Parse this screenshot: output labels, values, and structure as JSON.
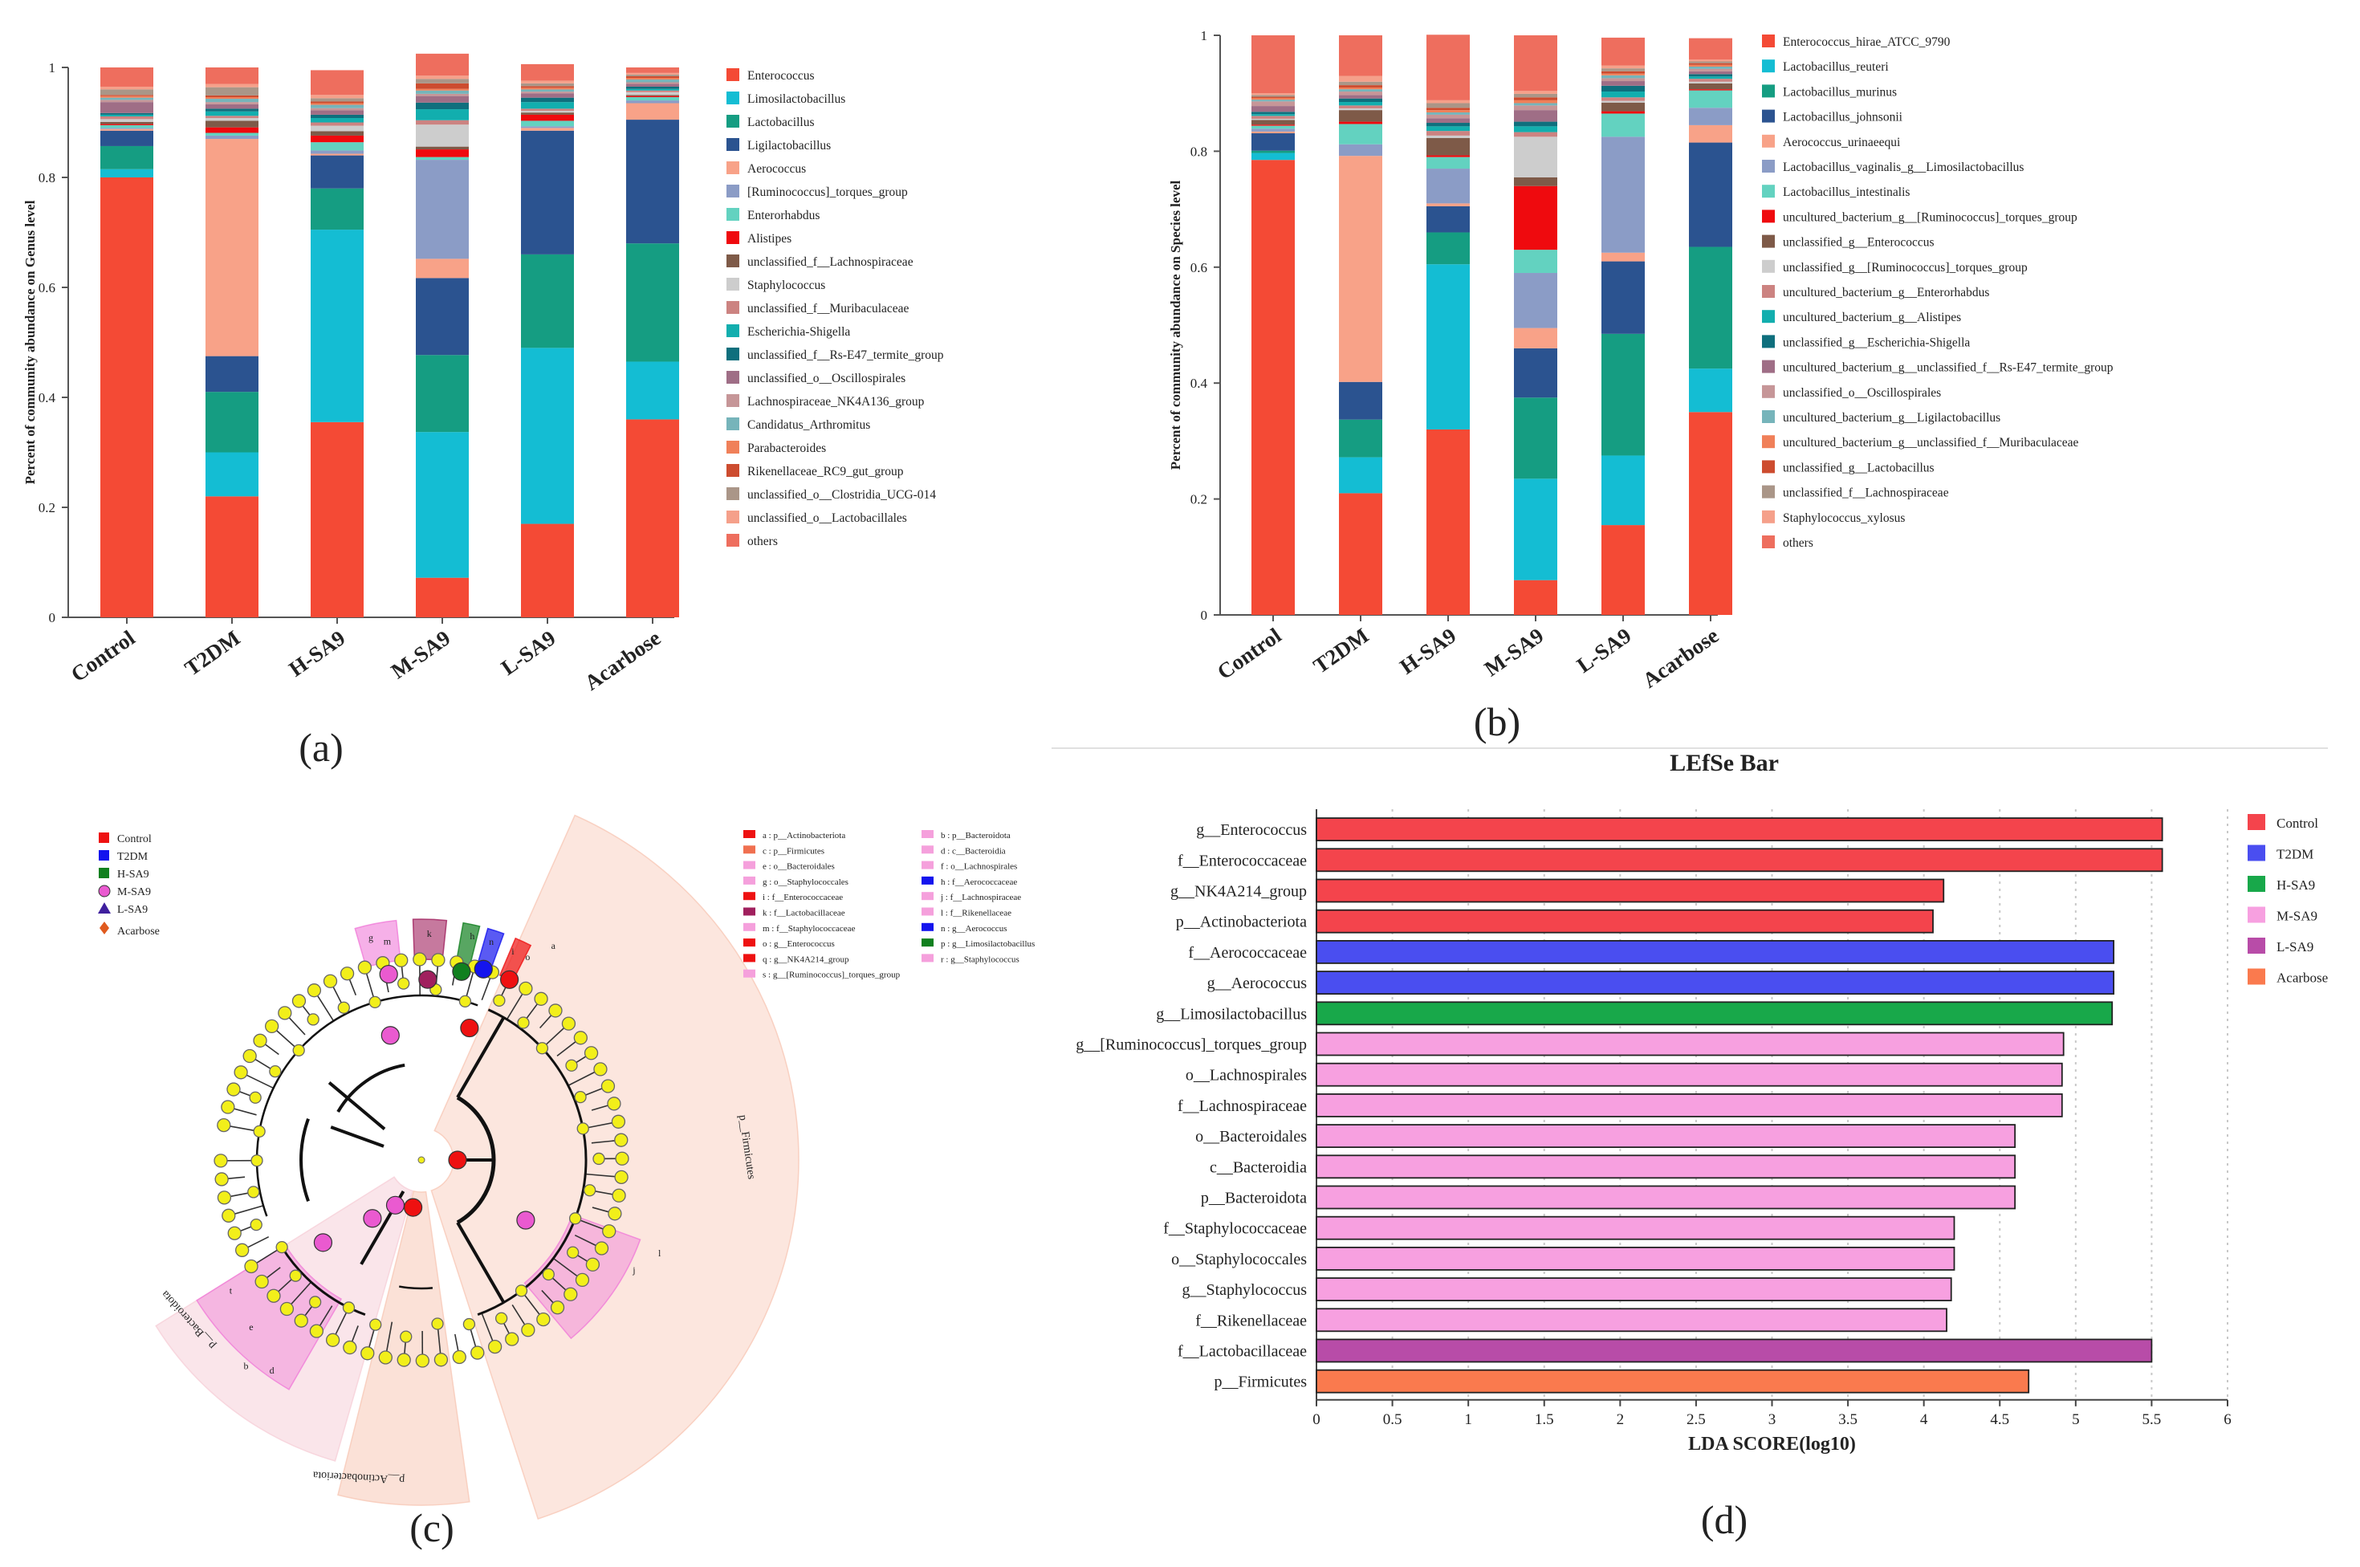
{
  "panel_labels": [
    "(a)",
    "(b)",
    "(c)",
    "(d)"
  ],
  "colors": {
    "Enterococcus": "#f44a35",
    "Limosilactobacillus": "#14bdd3",
    "Lactobacillus": "#159d82",
    "Ligilactobacillus": "#2b5390",
    "Aerococcus": "#f8a288",
    "Ruminococcus_torques": "#8b9cc6",
    "Enterorhabdus": "#63d2c0",
    "Alistipes": "#ef0a0e",
    "unc_Lachno": "#7e5a48",
    "Staphylococcus": "#cdcdcd",
    "unc_Murib": "#cc8381",
    "Escherichia": "#12aeae",
    "RsE47": "#0f6f7d",
    "Oscillo": "#9f6e86",
    "NK4A136": "#c69698",
    "Candidatus": "#76b4ba",
    "Parabacteroides": "#f08059",
    "Rikenellaceae": "#cd4c2f",
    "Clostridia": "#aa9688",
    "Lactobacillales": "#f5a08a",
    "others": "#ee6e5e"
  },
  "chart_data": [
    {
      "type": "bar",
      "stacked": true,
      "panel": "(a)",
      "title": "",
      "xlabel": "",
      "ylabel": "Percent of community abundance on Genus level",
      "ylim": [
        0,
        1
      ],
      "yticks": [
        "0",
        "0.2",
        "0.4",
        "0.6",
        "0.8",
        "1"
      ],
      "categories": [
        "Control",
        "T2DM",
        "H-SA9",
        "M-SA9",
        "L-SA9",
        "Acarbose"
      ],
      "series": [
        {
          "name": "Enterococcus",
          "key": "Enterococcus",
          "values": [
            0.8,
            0.22,
            0.355,
            0.072,
            0.17,
            0.36
          ]
        },
        {
          "name": "Limosilactobacillus",
          "key": "Limosilactobacillus",
          "values": [
            0.015,
            0.08,
            0.35,
            0.265,
            0.32,
            0.105
          ]
        },
        {
          "name": "Lactobacillus",
          "key": "Lactobacillus",
          "values": [
            0.042,
            0.11,
            0.075,
            0.14,
            0.17,
            0.215
          ]
        },
        {
          "name": "Ligilactobacillus",
          "key": "Ligilactobacillus",
          "values": [
            0.028,
            0.065,
            0.06,
            0.14,
            0.225,
            0.225
          ]
        },
        {
          "name": "Aerococcus",
          "key": "Aerococcus",
          "values": [
            0.003,
            0.395,
            0.003,
            0.035,
            0.005,
            0.03
          ]
        },
        {
          "name": "[Ruminococcus]_torques_group",
          "key": "Ruminococcus_torques",
          "values": [
            0.002,
            0.006,
            0.006,
            0.18,
            0.003,
            0.005
          ]
        },
        {
          "name": "Enterorhabdus",
          "key": "Enterorhabdus",
          "values": [
            0.005,
            0.005,
            0.015,
            0.005,
            0.01,
            0.006
          ]
        },
        {
          "name": "Alistipes",
          "key": "Alistipes",
          "values": [
            0.002,
            0.01,
            0.012,
            0.014,
            0.011,
            0.002
          ]
        },
        {
          "name": "unclassified_f__Lachnospiraceae",
          "key": "unc_Lachno",
          "values": [
            0.004,
            0.012,
            0.008,
            0.005,
            0.004,
            0.002
          ]
        },
        {
          "name": "Staphylococcus",
          "key": "Staphylococcus",
          "values": [
            0.005,
            0.005,
            0.01,
            0.04,
            0.003,
            0.005
          ]
        },
        {
          "name": "unclassified_f__Muribaculaceae",
          "key": "unc_Murib",
          "values": [
            0.005,
            0.004,
            0.006,
            0.008,
            0.004,
            0.003
          ]
        },
        {
          "name": "Escherichia-Shigella",
          "key": "Escherichia",
          "values": [
            0.003,
            0.008,
            0.008,
            0.02,
            0.012,
            0.003
          ]
        },
        {
          "name": "unclassified_f__Rs-E47_termite_group",
          "key": "RsE47",
          "values": [
            0.003,
            0.005,
            0.006,
            0.012,
            0.008,
            0.004
          ]
        },
        {
          "name": "unclassified_o__Oscillospirales",
          "key": "Oscillo",
          "values": [
            0.02,
            0.008,
            0.008,
            0.012,
            0.008,
            0.005
          ]
        },
        {
          "name": "Lachnospiraceae_NK4A136_group",
          "key": "NK4A136",
          "values": [
            0.004,
            0.004,
            0.004,
            0.004,
            0.003,
            0.003
          ]
        },
        {
          "name": "Candidatus_Arthromitus",
          "key": "Candidatus",
          "values": [
            0.004,
            0.006,
            0.006,
            0.006,
            0.004,
            0.005
          ]
        },
        {
          "name": "Parabacteroides",
          "key": "Parabacteroides",
          "values": [
            0.003,
            0.003,
            0.003,
            0.003,
            0.003,
            0.003
          ]
        },
        {
          "name": "Rikenellaceae_RC9_gut_group",
          "key": "Rikenellaceae",
          "values": [
            0.002,
            0.003,
            0.003,
            0.01,
            0.003,
            0.003
          ]
        },
        {
          "name": "unclassified_o__Clostridia_UCG-014",
          "key": "Clostridia",
          "values": [
            0.01,
            0.015,
            0.006,
            0.008,
            0.005,
            0.003
          ]
        },
        {
          "name": "unclassified_o__Lactobacillales",
          "key": "Lactobacillales",
          "values": [
            0.005,
            0.006,
            0.006,
            0.006,
            0.005,
            0.003
          ]
        },
        {
          "name": "others",
          "key": "others",
          "values": [
            0.035,
            0.03,
            0.045,
            0.04,
            0.03,
            0.01
          ]
        }
      ]
    },
    {
      "type": "bar",
      "stacked": true,
      "panel": "(b)",
      "title": "",
      "xlabel": "",
      "ylabel": "Percent of community abundance on Species level",
      "ylim": [
        0,
        1
      ],
      "yticks": [
        "0",
        "0.2",
        "0.4",
        "0.6",
        "0.8",
        "1"
      ],
      "categories": [
        "Control",
        "T2DM",
        "H-SA9",
        "M-SA9",
        "L-SA9",
        "Acarbose"
      ],
      "series": [
        {
          "name": "Enterococcus_hirae_ATCC_9790",
          "key": "Enterococcus",
          "values": [
            0.785,
            0.21,
            0.32,
            0.06,
            0.155,
            0.35
          ]
        },
        {
          "name": "Lactobacillus_reuteri",
          "key": "Limosilactobacillus",
          "values": [
            0.012,
            0.062,
            0.285,
            0.175,
            0.12,
            0.075
          ]
        },
        {
          "name": "Lactobacillus_murinus",
          "key": "Lactobacillus",
          "values": [
            0.004,
            0.065,
            0.055,
            0.14,
            0.21,
            0.21
          ]
        },
        {
          "name": "Lactobacillus_johnsonii",
          "key": "Ligilactobacillus",
          "values": [
            0.03,
            0.065,
            0.045,
            0.085,
            0.125,
            0.18
          ]
        },
        {
          "name": "Aerococcus_urinaeequi",
          "key": "Aerococcus",
          "values": [
            0.003,
            0.39,
            0.005,
            0.035,
            0.015,
            0.03
          ]
        },
        {
          "name": "Lactobacillus_vaginalis_g__Limosilactobacillus",
          "key": "Ruminococcus_torques",
          "values": [
            0.005,
            0.02,
            0.06,
            0.095,
            0.2,
            0.03
          ]
        },
        {
          "name": "Lactobacillus_intestinalis",
          "key": "Enterorhabdus",
          "values": [
            0.005,
            0.035,
            0.02,
            0.04,
            0.04,
            0.03
          ]
        },
        {
          "name": "uncultured_bacterium_g__[Ruminococcus]_torques_group",
          "key": "Alistipes",
          "values": [
            0.002,
            0.004,
            0.003,
            0.11,
            0.004,
            0.002
          ]
        },
        {
          "name": "unclassified_g__Enterococcus",
          "key": "unc_Lachno",
          "values": [
            0.008,
            0.02,
            0.03,
            0.015,
            0.015,
            0.01
          ]
        },
        {
          "name": "unclassified_g__[Ruminococcus]_torques_group",
          "key": "Staphylococcus",
          "values": [
            0.002,
            0.003,
            0.004,
            0.07,
            0.003,
            0.003
          ]
        },
        {
          "name": "uncultured_bacterium_g__Enterorhabdus",
          "key": "unc_Murib",
          "values": [
            0.005,
            0.005,
            0.008,
            0.008,
            0.006,
            0.005
          ]
        },
        {
          "name": "uncultured_bacterium_g__Alistipes",
          "key": "Escherichia",
          "values": [
            0.003,
            0.006,
            0.008,
            0.01,
            0.01,
            0.004
          ]
        },
        {
          "name": "unclassified_g__Escherichia-Shigella",
          "key": "RsE47",
          "values": [
            0.004,
            0.006,
            0.006,
            0.008,
            0.01,
            0.004
          ]
        },
        {
          "name": "uncultured_bacterium_g__unclassified_f__Rs-E47_termite_group",
          "key": "Oscillo",
          "values": [
            0.01,
            0.006,
            0.008,
            0.02,
            0.008,
            0.005
          ]
        },
        {
          "name": "unclassified_o__Oscillospirales",
          "key": "NK4A136",
          "values": [
            0.008,
            0.006,
            0.006,
            0.008,
            0.005,
            0.004
          ]
        },
        {
          "name": "uncultured_bacterium_g__Ligilactobacillus",
          "key": "Candidatus",
          "values": [
            0.003,
            0.004,
            0.004,
            0.004,
            0.005,
            0.004
          ]
        },
        {
          "name": "uncultured_bacterium_g__unclassified_f__Muribaculaceae",
          "key": "Parabacteroides",
          "values": [
            0.003,
            0.003,
            0.004,
            0.005,
            0.003,
            0.003
          ]
        },
        {
          "name": "unclassified_g__Lactobacillus",
          "key": "Rikenellaceae",
          "values": [
            0.002,
            0.004,
            0.004,
            0.005,
            0.004,
            0.003
          ]
        },
        {
          "name": "unclassified_f__Lachnospiraceae",
          "key": "Clostridia",
          "values": [
            0.003,
            0.006,
            0.008,
            0.006,
            0.005,
            0.003
          ]
        },
        {
          "name": "Staphylococcus_xylosus",
          "key": "Lactobacillales",
          "values": [
            0.003,
            0.01,
            0.005,
            0.005,
            0.005,
            0.003
          ]
        },
        {
          "name": "others",
          "key": "others",
          "values": [
            0.1,
            0.07,
            0.113,
            0.096,
            0.048,
            0.037
          ]
        }
      ]
    },
    {
      "type": "other",
      "panel": "(c)",
      "subtype": "cladogram",
      "legend": [
        "Control",
        "T2DM",
        "H-SA9",
        "M-SA9",
        "L-SA9",
        "Acarbose"
      ],
      "legend_colors": [
        "#ee1111",
        "#1414ee",
        "#11801f",
        "#ea5ad0",
        "#3f1f9e",
        "#e05a1e"
      ],
      "clade_labels": [
        {
          "text": "a : p__Actinobacteriota",
          "color": "#ee1111"
        },
        {
          "text": "c : p__Firmicutes",
          "color": "#f07050"
        },
        {
          "text": "e : o__Bacteroidales",
          "color": "#f5a0dc"
        },
        {
          "text": "g : o__Staphylococcales",
          "color": "#f5a0dc"
        },
        {
          "text": "i : f__Enterococcaceae",
          "color": "#ee1111"
        },
        {
          "text": "k : f__Lactobacillaceae",
          "color": "#a0205e"
        },
        {
          "text": "m : f__Staphylococcaceae",
          "color": "#f5a0dc"
        },
        {
          "text": "o : g__Enterococcus",
          "color": "#ee1111"
        },
        {
          "text": "q : g__NK4A214_group",
          "color": "#ee1111"
        },
        {
          "text": "s : g__[Ruminococcus]_torques_group",
          "color": "#f5a0dc"
        },
        {
          "text": "b : p__Bacteroidota",
          "color": "#f5a0dc"
        },
        {
          "text": "d : c__Bacteroidia",
          "color": "#f5a0dc"
        },
        {
          "text": "f : o__Lachnospirales",
          "color": "#f5a0dc"
        },
        {
          "text": "h : f__Aerococcaceae",
          "color": "#1414ee"
        },
        {
          "text": "j : f__Lachnospiraceae",
          "color": "#f5a0dc"
        },
        {
          "text": "l : f__Rikenellaceae",
          "color": "#f5a0dc"
        },
        {
          "text": "n : g__Aerococcus",
          "color": "#1414ee"
        },
        {
          "text": "p : g__Limosilactobacillus",
          "color": "#11801f"
        },
        {
          "text": "r : g__Staphylococcus",
          "color": "#f5a0dc"
        }
      ],
      "phylum_labels": [
        "p__Firmicutes",
        "p__Bacteroidota",
        "p__Actinobacteriota"
      ],
      "node_letters": [
        "g",
        "m",
        "k",
        "n",
        "h",
        "o",
        "i",
        "a",
        "t",
        "e",
        "b",
        "d",
        "j",
        "l"
      ]
    },
    {
      "type": "bar",
      "orientation": "horizontal",
      "panel": "(d)",
      "title": "LEfSe Bar",
      "xlabel": "LDA SCORE(log10)",
      "ylabel": "",
      "xlim": [
        0,
        6
      ],
      "xticks": [
        "0",
        "0.5",
        "1",
        "1.5",
        "2",
        "2.5",
        "3",
        "3.5",
        "4",
        "4.5",
        "5",
        "5.5",
        "6"
      ],
      "legend": [
        {
          "name": "Control",
          "color": "#f4444c"
        },
        {
          "name": "T2DM",
          "color": "#4a4ef0"
        },
        {
          "name": "H-SA9",
          "color": "#18a84a"
        },
        {
          "name": "M-SA9",
          "color": "#f7a0e0"
        },
        {
          "name": "L-SA9",
          "color": "#b84ca8"
        },
        {
          "name": "Acarbose",
          "color": "#fa7a4e"
        }
      ],
      "categories": [
        "g__Enterococcus",
        "f__Enterococcaceae",
        "g__NK4A214_group",
        "p__Actinobacteriota",
        "f__Aerococcaceae",
        "g__Aerococcus",
        "g__Limosilactobacillus",
        "g__[Ruminococcus]_torques_group",
        "o__Lachnospirales",
        "f__Lachnospiraceae",
        "o__Bacteroidales",
        "c__Bacteroidia",
        "p__Bacteroidota",
        "f__Staphylococcaceae",
        "o__Staphylococcales",
        "g__Staphylococcus",
        "f__Rikenellaceae",
        "f__Lactobacillaceae",
        "p__Firmicutes"
      ],
      "values": [
        5.57,
        5.57,
        4.13,
        4.06,
        5.25,
        5.25,
        5.24,
        4.92,
        4.91,
        4.91,
        4.6,
        4.6,
        4.6,
        4.2,
        4.2,
        4.18,
        4.15,
        5.5,
        4.69
      ],
      "groups": [
        "Control",
        "Control",
        "Control",
        "Control",
        "T2DM",
        "T2DM",
        "H-SA9",
        "M-SA9",
        "M-SA9",
        "M-SA9",
        "M-SA9",
        "M-SA9",
        "M-SA9",
        "M-SA9",
        "M-SA9",
        "M-SA9",
        "M-SA9",
        "L-SA9",
        "Acarbose"
      ]
    }
  ]
}
